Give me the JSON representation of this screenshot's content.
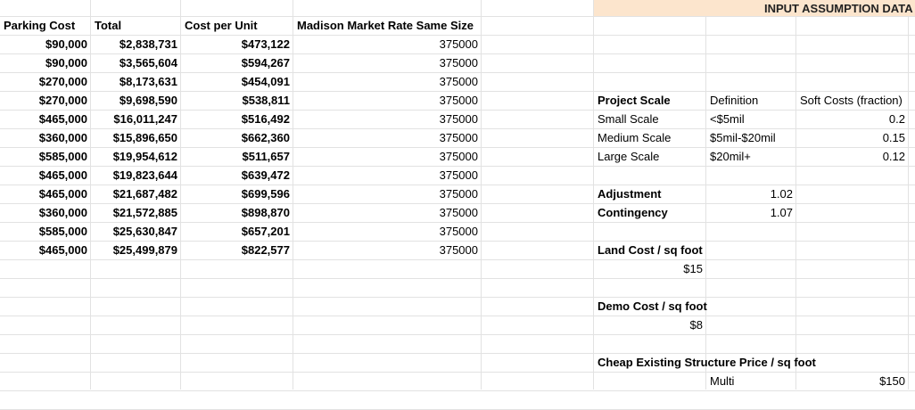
{
  "banner": {
    "title": "INPUT ASSUMPTION DATA"
  },
  "left_table": {
    "headers": [
      "Parking Cost",
      "Total",
      "Cost per Unit",
      "Madison Market Rate Same Size"
    ],
    "rows": [
      [
        "$90,000",
        "$2,838,731",
        "$473,122",
        "375000"
      ],
      [
        "$90,000",
        "$3,565,604",
        "$594,267",
        "375000"
      ],
      [
        "$270,000",
        "$8,173,631",
        "$454,091",
        "375000"
      ],
      [
        "$270,000",
        "$9,698,590",
        "$538,811",
        "375000"
      ],
      [
        "$465,000",
        "$16,011,247",
        "$516,492",
        "375000"
      ],
      [
        "$360,000",
        "$15,896,650",
        "$662,360",
        "375000"
      ],
      [
        "$585,000",
        "$19,954,612",
        "$511,657",
        "375000"
      ],
      [
        "$465,000",
        "$19,823,644",
        "$639,472",
        "375000"
      ],
      [
        "$465,000",
        "$21,687,482",
        "$699,596",
        "375000"
      ],
      [
        "$360,000",
        "$21,572,885",
        "$898,870",
        "375000"
      ],
      [
        "$585,000",
        "$25,630,847",
        "$657,201",
        "375000"
      ],
      [
        "$465,000",
        "$25,499,879",
        "$822,577",
        "375000"
      ]
    ]
  },
  "assumptions": {
    "scale_headers": [
      "Project Scale",
      "Definition",
      "Soft Costs (fraction)"
    ],
    "scale_rows": [
      [
        "Small Scale",
        "<$5mil",
        "0.2"
      ],
      [
        "Medium Scale",
        "$5mil-$20mil",
        "0.15"
      ],
      [
        "Large Scale",
        "$20mil+",
        "0.12"
      ]
    ],
    "adjustment_label": "Adjustment",
    "adjustment_value": "1.02",
    "contingency_label": "Contingency",
    "contingency_value": "1.07",
    "land_cost_label": "Land Cost / sq foot",
    "land_cost_value": "$15",
    "demo_cost_label": "Demo Cost / sq foot",
    "demo_cost_value": "$8",
    "structure_label": "Cheap Existing Structure Price / sq foot",
    "structure_type": "Multi",
    "structure_value": "$150"
  }
}
